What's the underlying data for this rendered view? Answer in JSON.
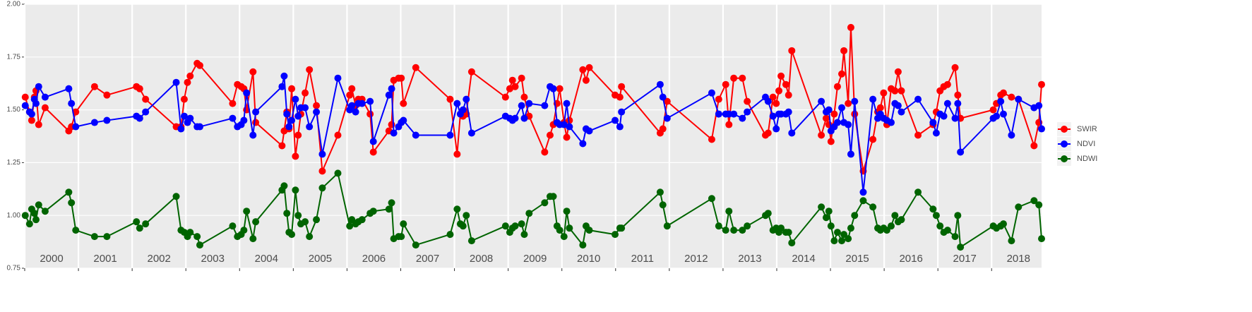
{
  "chart_data": {
    "type": "line",
    "x": [
      2000.01,
      2000.09,
      2000.13,
      2000.18,
      2000.21,
      2000.26,
      2000.38,
      2000.82,
      2000.87,
      2000.95,
      2001.3,
      2001.53,
      2002.08,
      2002.14,
      2002.25,
      2002.82,
      2002.91,
      2002.97,
      2003.03,
      2003.08,
      2003.21,
      2003.26,
      2003.87,
      2003.96,
      2004.03,
      2004.08,
      2004.13,
      2004.25,
      2004.3,
      2004.79,
      2004.83,
      2004.88,
      2004.92,
      2004.97,
      2005.04,
      2005.09,
      2005.14,
      2005.22,
      2005.3,
      2005.43,
      2005.54,
      2005.83,
      2006.05,
      2006.09,
      2006.16,
      2006.21,
      2006.28,
      2006.43,
      2006.49,
      2006.78,
      2006.83,
      2006.87,
      2006.96,
      2007.01,
      2007.05,
      2007.28,
      2007.92,
      2008.05,
      2008.11,
      2008.16,
      2008.22,
      2008.32,
      2008.95,
      2009.03,
      2009.08,
      2009.13,
      2009.25,
      2009.3,
      2009.39,
      2009.68,
      2009.78,
      2009.84,
      2009.91,
      2009.96,
      2010.04,
      2010.09,
      2010.14,
      2010.39,
      2010.45,
      2010.51,
      2010.99,
      2011.08,
      2011.11,
      2011.83,
      2011.88,
      2011.96,
      2012.79,
      2012.92,
      2013.05,
      2013.11,
      2013.2,
      2013.36,
      2013.45,
      2013.79,
      2013.84,
      2013.93,
      2013.99,
      2014.04,
      2014.08,
      2014.17,
      2014.22,
      2014.28,
      2014.83,
      2014.92,
      2014.97,
      2015.01,
      2015.07,
      2015.13,
      2015.21,
      2015.25,
      2015.33,
      2015.38,
      2015.45,
      2015.61,
      2015.79,
      2015.88,
      2015.93,
      2015.99,
      2016.05,
      2016.13,
      2016.2,
      2016.26,
      2016.32,
      2016.63,
      2016.91,
      2016.97,
      2017.04,
      2017.11,
      2017.18,
      2017.32,
      2017.37,
      2017.42,
      2018.03,
      2018.09,
      2018.17,
      2018.22,
      2018.37,
      2018.5,
      2018.79,
      2018.88,
      2018.93
    ],
    "series": [
      {
        "name": "SWIR",
        "color": "#ff0000",
        "values": [
          1.56,
          1.49,
          1.45,
          1.56,
          1.59,
          1.43,
          1.51,
          1.4,
          1.42,
          1.49,
          1.61,
          1.57,
          1.61,
          1.6,
          1.55,
          1.42,
          1.42,
          1.55,
          1.63,
          1.66,
          1.72,
          1.71,
          1.53,
          1.62,
          1.61,
          1.6,
          1.5,
          1.68,
          1.44,
          1.33,
          1.4,
          1.49,
          1.41,
          1.6,
          1.28,
          1.38,
          1.48,
          1.58,
          1.69,
          1.52,
          1.21,
          1.38,
          1.57,
          1.6,
          1.52,
          1.55,
          1.55,
          1.48,
          1.3,
          1.4,
          1.43,
          1.64,
          1.65,
          1.65,
          1.53,
          1.7,
          1.55,
          1.29,
          1.48,
          1.47,
          1.48,
          1.68,
          1.56,
          1.6,
          1.64,
          1.61,
          1.65,
          1.56,
          1.47,
          1.3,
          1.38,
          1.43,
          1.53,
          1.6,
          1.44,
          1.37,
          1.45,
          1.69,
          1.64,
          1.7,
          1.57,
          1.56,
          1.61,
          1.39,
          1.41,
          1.54,
          1.36,
          1.55,
          1.62,
          1.43,
          1.65,
          1.65,
          1.54,
          1.38,
          1.39,
          1.56,
          1.53,
          1.59,
          1.66,
          1.62,
          1.57,
          1.78,
          1.38,
          1.46,
          1.43,
          1.35,
          1.48,
          1.61,
          1.67,
          1.78,
          1.53,
          1.89,
          1.48,
          1.21,
          1.36,
          1.49,
          1.51,
          1.58,
          1.43,
          1.6,
          1.59,
          1.68,
          1.59,
          1.38,
          1.43,
          1.49,
          1.59,
          1.61,
          1.62,
          1.7,
          1.57,
          1.46,
          1.5,
          1.53,
          1.57,
          1.58,
          1.56,
          1.55,
          1.33,
          1.44,
          1.62
        ]
      },
      {
        "name": "NDVI",
        "color": "#0000ff",
        "values": [
          1.52,
          1.49,
          1.48,
          1.55,
          1.53,
          1.61,
          1.56,
          1.6,
          1.53,
          1.42,
          1.44,
          1.45,
          1.47,
          1.46,
          1.49,
          1.63,
          1.41,
          1.47,
          1.44,
          1.46,
          1.42,
          1.42,
          1.46,
          1.42,
          1.43,
          1.45,
          1.58,
          1.38,
          1.49,
          1.61,
          1.66,
          1.48,
          1.42,
          1.45,
          1.55,
          1.47,
          1.51,
          1.51,
          1.42,
          1.49,
          1.29,
          1.65,
          1.5,
          1.52,
          1.49,
          1.53,
          1.53,
          1.54,
          1.35,
          1.57,
          1.6,
          1.39,
          1.42,
          1.44,
          1.45,
          1.38,
          1.38,
          1.53,
          1.48,
          1.5,
          1.55,
          1.39,
          1.47,
          1.46,
          1.45,
          1.46,
          1.52,
          1.46,
          1.53,
          1.52,
          1.61,
          1.6,
          1.44,
          1.43,
          1.43,
          1.53,
          1.42,
          1.34,
          1.41,
          1.4,
          1.45,
          1.42,
          1.49,
          1.62,
          1.56,
          1.46,
          1.58,
          1.48,
          1.48,
          1.48,
          1.48,
          1.46,
          1.49,
          1.56,
          1.54,
          1.47,
          1.41,
          1.48,
          1.48,
          1.48,
          1.49,
          1.39,
          1.54,
          1.49,
          1.5,
          1.4,
          1.42,
          1.44,
          1.51,
          1.44,
          1.43,
          1.29,
          1.54,
          1.11,
          1.55,
          1.46,
          1.48,
          1.46,
          1.45,
          1.44,
          1.53,
          1.52,
          1.49,
          1.55,
          1.44,
          1.39,
          1.48,
          1.47,
          1.53,
          1.46,
          1.53,
          1.3,
          1.46,
          1.47,
          1.54,
          1.48,
          1.38,
          1.55,
          1.51,
          1.52,
          1.41
        ]
      },
      {
        "name": "NDWI",
        "color": "#006400",
        "values": [
          1.0,
          0.96,
          1.03,
          1.01,
          0.98,
          1.05,
          1.02,
          1.11,
          1.06,
          0.93,
          0.9,
          0.9,
          0.97,
          0.94,
          0.96,
          1.09,
          0.93,
          0.92,
          0.9,
          0.92,
          0.9,
          0.86,
          0.95,
          0.9,
          0.91,
          0.93,
          1.02,
          0.89,
          0.97,
          1.12,
          1.14,
          1.01,
          0.92,
          0.91,
          1.12,
          1.0,
          0.96,
          0.97,
          0.9,
          0.98,
          1.13,
          1.2,
          0.95,
          0.98,
          0.96,
          0.97,
          0.98,
          1.01,
          1.02,
          1.03,
          1.06,
          0.89,
          0.9,
          0.9,
          0.96,
          0.86,
          0.91,
          1.03,
          0.96,
          0.95,
          1.0,
          0.88,
          0.95,
          0.92,
          0.94,
          0.95,
          0.96,
          0.91,
          1.01,
          1.06,
          1.09,
          1.09,
          0.95,
          0.93,
          0.9,
          1.02,
          0.94,
          0.86,
          0.95,
          0.93,
          0.91,
          0.94,
          0.94,
          1.11,
          1.05,
          0.95,
          1.08,
          0.95,
          0.93,
          1.02,
          0.93,
          0.93,
          0.95,
          1.0,
          1.01,
          0.93,
          0.94,
          0.92,
          0.94,
          0.92,
          0.92,
          0.87,
          1.04,
          0.99,
          1.02,
          0.95,
          0.88,
          0.92,
          0.88,
          0.91,
          0.89,
          0.94,
          1.0,
          1.07,
          1.04,
          0.94,
          0.93,
          0.94,
          0.93,
          0.95,
          1.0,
          0.97,
          0.98,
          1.11,
          1.03,
          1.0,
          0.95,
          0.92,
          0.93,
          0.9,
          1.0,
          0.85,
          0.95,
          0.94,
          0.95,
          0.96,
          0.88,
          1.04,
          1.07,
          1.05,
          0.89
        ]
      }
    ],
    "xlim": [
      2000,
      2018.93
    ],
    "xticks": [
      2000,
      2001,
      2002,
      2003,
      2004,
      2005,
      2006,
      2007,
      2008,
      2009,
      2010,
      2011,
      2012,
      2013,
      2014,
      2015,
      2016,
      2017,
      2018
    ],
    "year_labels": [
      {
        "value": 2000.5,
        "label": "2000"
      },
      {
        "value": 2001.5,
        "label": "2001"
      },
      {
        "value": 2002.5,
        "label": "2002"
      },
      {
        "value": 2003.5,
        "label": "2003"
      },
      {
        "value": 2004.5,
        "label": "2004"
      },
      {
        "value": 2005.5,
        "label": "2005"
      },
      {
        "value": 2006.5,
        "label": "2006"
      },
      {
        "value": 2007.5,
        "label": "2007"
      },
      {
        "value": 2008.5,
        "label": "2008"
      },
      {
        "value": 2009.5,
        "label": "2009"
      },
      {
        "value": 2010.5,
        "label": "2010"
      },
      {
        "value": 2011.5,
        "label": "2011"
      },
      {
        "value": 2012.5,
        "label": "2012"
      },
      {
        "value": 2013.5,
        "label": "2013"
      },
      {
        "value": 2014.5,
        "label": "2014"
      },
      {
        "value": 2015.5,
        "label": "2015"
      },
      {
        "value": 2016.5,
        "label": "2016"
      },
      {
        "value": 2017.5,
        "label": "2017"
      },
      {
        "value": 2018.5,
        "label": "2018"
      }
    ],
    "ylim": [
      0.75,
      2.0
    ],
    "yticks": [
      {
        "value": 0.75,
        "label": "0.75"
      },
      {
        "value": 1.0,
        "label": "1.00"
      },
      {
        "value": 1.25,
        "label": "1.25"
      },
      {
        "value": 1.5,
        "label": "1.50"
      },
      {
        "value": 1.75,
        "label": "1.75"
      },
      {
        "value": 2.0,
        "label": "2.00"
      }
    ],
    "grid": true,
    "legend": "right"
  }
}
